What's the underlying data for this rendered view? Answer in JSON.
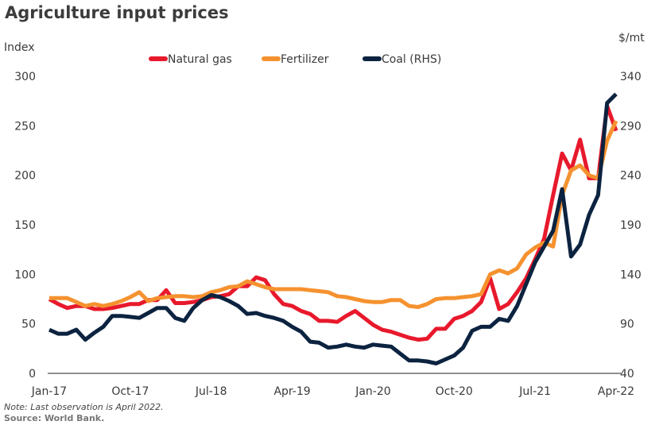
{
  "chart_data": {
    "type": "line",
    "title": "Agriculture input prices",
    "ylabel_left": "Index",
    "ylabel_right": "$/mt",
    "ylim_left": [
      0,
      300
    ],
    "ylim_right": [
      40,
      340
    ],
    "yticks_left": [
      "0",
      "50",
      "100",
      "150",
      "200",
      "250",
      "300"
    ],
    "yticks_right": [
      "40",
      "90",
      "140",
      "190",
      "240",
      "290",
      "340"
    ],
    "x_start": "Jan-17",
    "x_end": "Apr-22",
    "x_frequency": "monthly",
    "xticks": [
      "Jan-17",
      "Oct-17",
      "Jul-18",
      "Apr-19",
      "Jan-20",
      "Oct-20",
      "Jul-21",
      "Apr-22"
    ],
    "grid": false,
    "legend_position": "top",
    "series": [
      {
        "name": "Natural gas",
        "axis": "left",
        "color": "#e8192c",
        "values": [
          75,
          70,
          66,
          68,
          68,
          65,
          65,
          66,
          68,
          70,
          70,
          74,
          74,
          84,
          71,
          71,
          72,
          74,
          77,
          78,
          80,
          88,
          88,
          97,
          94,
          80,
          70,
          68,
          63,
          60,
          53,
          53,
          52,
          58,
          63,
          56,
          49,
          44,
          42,
          39,
          36,
          34,
          35,
          45,
          45,
          55,
          58,
          63,
          72,
          96,
          65,
          70,
          82,
          96,
          115,
          136,
          180,
          222,
          205,
          236,
          197,
          197,
          270,
          245
        ]
      },
      {
        "name": "Fertilizer",
        "axis": "left",
        "color": "#f5922f",
        "values": [
          76,
          76,
          76,
          72,
          68,
          70,
          68,
          70,
          73,
          77,
          82,
          73,
          76,
          77,
          78,
          78,
          77,
          78,
          82,
          84,
          87,
          88,
          93,
          90,
          87,
          85,
          85,
          85,
          85,
          84,
          83,
          82,
          78,
          77,
          75,
          73,
          72,
          72,
          74,
          74,
          68,
          67,
          70,
          75,
          76,
          76,
          77,
          78,
          80,
          100,
          104,
          101,
          106,
          120,
          127,
          132,
          128,
          180,
          205,
          210,
          200,
          197,
          235,
          255
        ]
      },
      {
        "name": "Coal (RHS)",
        "axis": "right",
        "color": "#0c2340",
        "values": [
          84,
          80,
          80,
          84,
          74,
          81,
          87,
          98,
          98,
          97,
          96,
          101,
          106,
          106,
          96,
          93,
          106,
          114,
          119,
          117,
          113,
          108,
          100,
          101,
          98,
          96,
          93,
          87,
          82,
          72,
          71,
          66,
          67,
          69,
          67,
          66,
          69,
          68,
          67,
          60,
          53,
          53,
          52,
          50,
          54,
          58,
          66,
          83,
          87,
          87,
          95,
          93,
          108,
          130,
          152,
          168,
          184,
          226,
          158,
          170,
          200,
          220,
          313,
          322
        ]
      }
    ],
    "note": "Note: Last observation is April 2022.",
    "source": "Source: World Bank."
  }
}
